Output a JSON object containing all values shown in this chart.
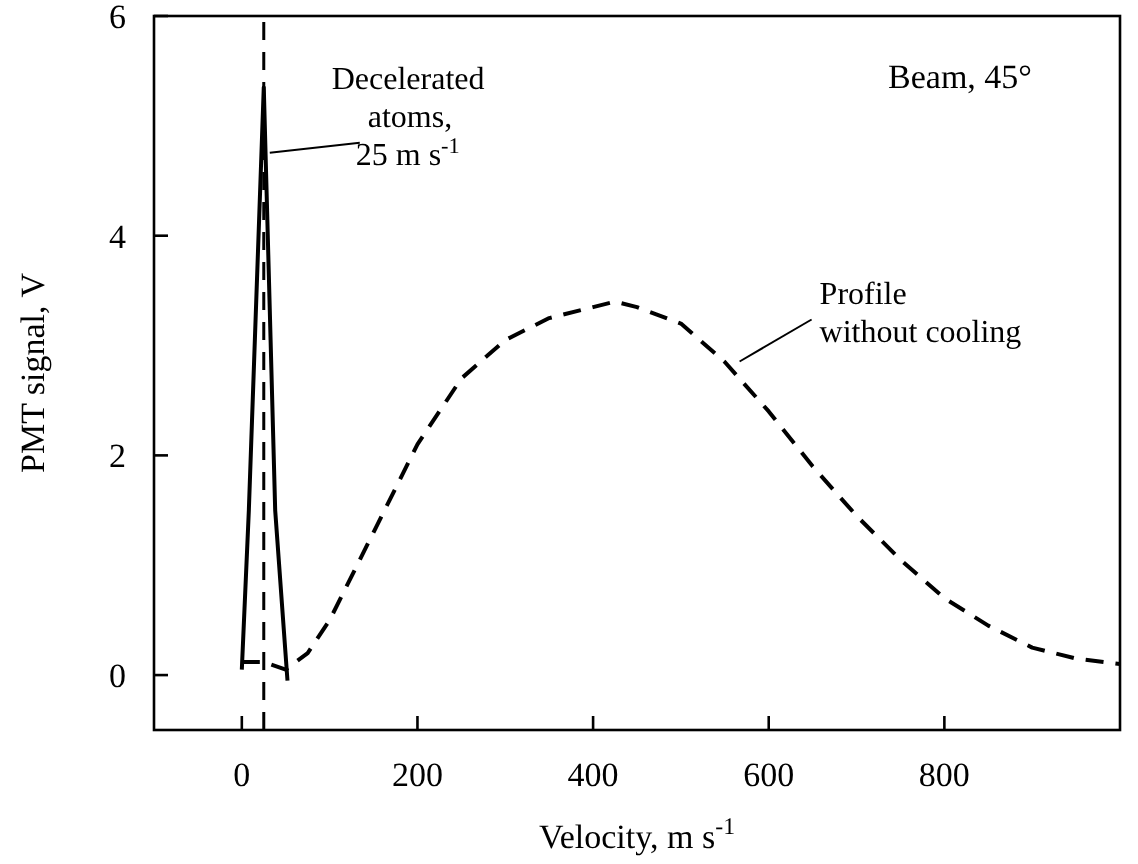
{
  "chart_data": {
    "type": "line",
    "xlabel": "Velocity, m s$^{-1}$",
    "ylabel": "PMT signal, V",
    "xlim": [
      -100,
      1000
    ],
    "xticks": [
      0,
      200,
      400,
      600,
      800
    ],
    "ylim": [
      -0.5,
      6
    ],
    "yticks": [
      0,
      2,
      4,
      6
    ],
    "grid": false,
    "series": [
      {
        "color": "#000000",
        "line_style": "solid",
        "x": [
          0,
          8,
          25,
          38,
          52
        ],
        "values": [
          0.05,
          1.5,
          5.35,
          1.5,
          -0.05
        ]
      },
      {
        "color": "#000000",
        "line_style": "dashed",
        "x": [
          0,
          25,
          50,
          75,
          100,
          150,
          200,
          250,
          300,
          350,
          400,
          425,
          450,
          500,
          550,
          600,
          650,
          700,
          750,
          800,
          850,
          900,
          950,
          1000
        ],
        "values": [
          0.12,
          0.12,
          0.05,
          0.2,
          0.5,
          1.3,
          2.1,
          2.7,
          3.05,
          3.25,
          3.35,
          3.4,
          3.35,
          3.2,
          2.85,
          2.4,
          1.9,
          1.45,
          1.05,
          0.7,
          0.45,
          0.25,
          0.15,
          0.1
        ]
      }
    ],
    "ref_lines": [
      {
        "axis": "x",
        "value": 25,
        "line_style": "dashed",
        "color": "#000000"
      }
    ],
    "annotations": [
      {
        "text": "Decelerated\natoms,\n25 m s$^{-1}$",
        "x": 25,
        "y": 4.7
      },
      {
        "text": "Profile\nwithout cooling",
        "x": 560,
        "y": 2.8
      },
      "Beam, 45°"
    ]
  }
}
